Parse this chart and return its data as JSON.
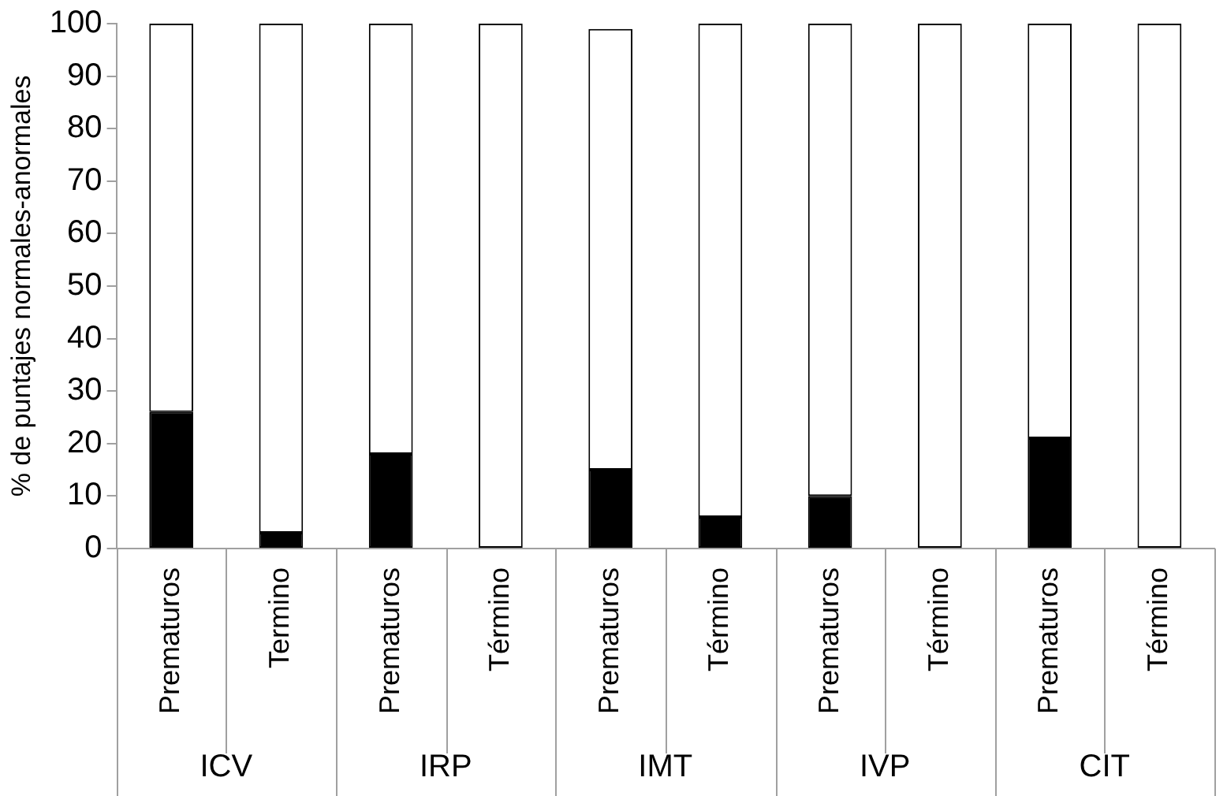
{
  "chart_data": {
    "type": "bar",
    "stacked": true,
    "ylabel": "% de puntajes normales-anormales",
    "categories": [
      "Prematuros",
      "Termino",
      "Prematuros",
      "Término",
      "Prematuros",
      "Término",
      "Prematuros",
      "Término",
      "Prematuros",
      "Término"
    ],
    "series": [
      {
        "color": "#000000",
        "values": [
          26,
          3,
          18,
          0,
          15,
          6,
          10,
          0,
          21,
          0
        ]
      },
      {
        "color": "#ffffff",
        "values": [
          74,
          97,
          82,
          100,
          84,
          94,
          90,
          100,
          79,
          100
        ]
      }
    ],
    "annotations": [
      "ICV",
      "IRP",
      "IMT",
      "IVP",
      "CIT"
    ],
    "ylim": [
      0,
      100
    ],
    "yticks": [
      0,
      10,
      20,
      30,
      40,
      50,
      60,
      70,
      80,
      90,
      100
    ],
    "grid": false,
    "legend": false
  }
}
